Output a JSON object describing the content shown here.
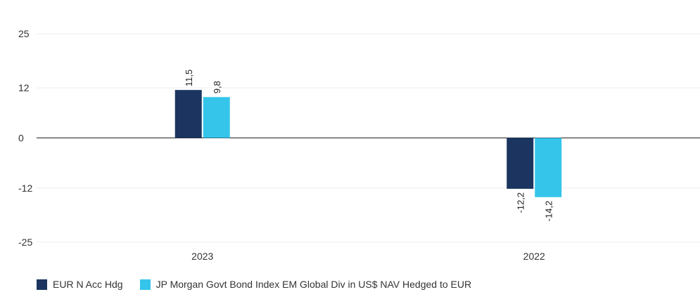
{
  "chart_data": {
    "type": "bar",
    "categories": [
      "2023",
      "2022"
    ],
    "series": [
      {
        "name": "EUR N Acc Hdg",
        "values": [
          11.5,
          -12.2
        ],
        "labels": [
          "11,5",
          "-12,2"
        ],
        "color": "#1b3560"
      },
      {
        "name": "JP Morgan Govt Bond Index EM Global Div in US$ NAV Hedged to EUR",
        "values": [
          9.8,
          -14.2
        ],
        "labels": [
          "9,8",
          "-14,2"
        ],
        "color": "#35c5ea"
      }
    ],
    "yticks": [
      25,
      12,
      0,
      -12,
      -25
    ],
    "ylim": [
      -25,
      25
    ],
    "grid": true,
    "legend_position": "bottom-left",
    "title": "",
    "xlabel": "",
    "ylabel": ""
  }
}
